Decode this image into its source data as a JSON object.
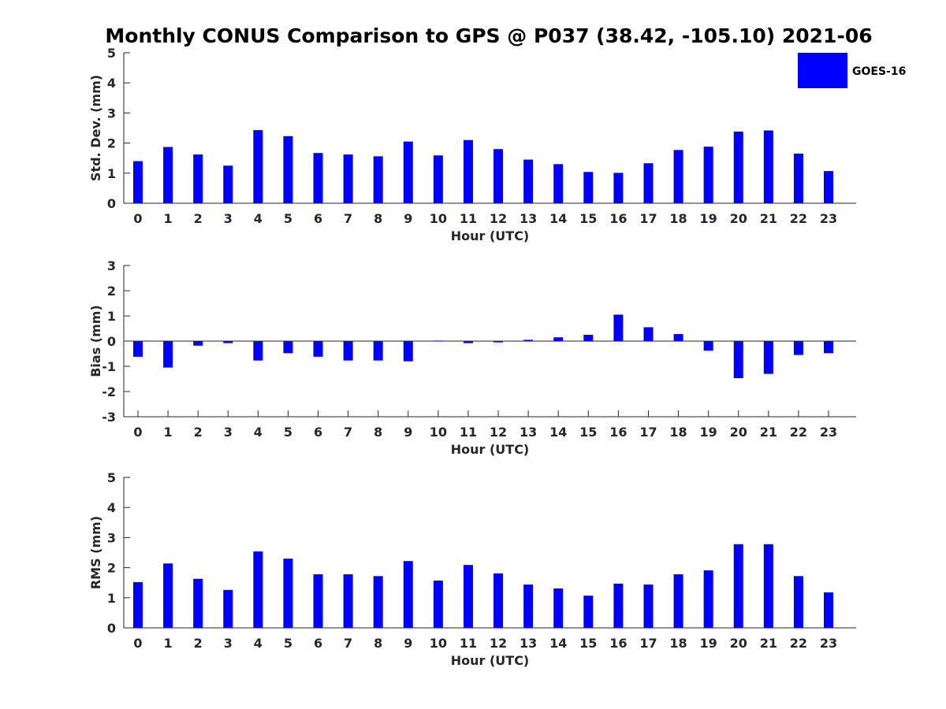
{
  "title": "Monthly CONUS Comparison to GPS @ P037 (38.42, -105.10) 2021-06",
  "legend": {
    "label": "GOES-16",
    "color": "#0000ff",
    "placement": "top-right"
  },
  "chart_data": [
    {
      "type": "bar",
      "series_name": "GOES-16",
      "xlabel": "Hour (UTC)",
      "ylabel": "Std. Dev. (mm)",
      "ylim": [
        0,
        5
      ],
      "yticks": [
        0,
        1,
        2,
        3,
        4,
        5
      ],
      "categories": [
        0,
        1,
        2,
        3,
        4,
        5,
        6,
        7,
        8,
        9,
        10,
        11,
        12,
        13,
        14,
        15,
        16,
        17,
        18,
        19,
        20,
        21,
        22,
        23
      ],
      "values": [
        1.4,
        1.87,
        1.62,
        1.25,
        2.43,
        2.23,
        1.67,
        1.62,
        1.56,
        2.05,
        1.59,
        2.1,
        1.8,
        1.45,
        1.3,
        1.04,
        1.01,
        1.33,
        1.77,
        1.88,
        2.38,
        2.42,
        1.65,
        1.07
      ],
      "color": "#0000ff",
      "grid": false,
      "legend": "top-right"
    },
    {
      "type": "bar",
      "series_name": "GOES-16",
      "xlabel": "Hour (UTC)",
      "ylabel": "Bias (mm)",
      "ylim": [
        -3,
        3
      ],
      "yticks": [
        -3,
        -2,
        -1,
        0,
        1,
        2,
        3
      ],
      "categories": [
        0,
        1,
        2,
        3,
        4,
        5,
        6,
        7,
        8,
        9,
        10,
        11,
        12,
        13,
        14,
        15,
        16,
        17,
        18,
        19,
        20,
        21,
        22,
        23
      ],
      "values": [
        -0.62,
        -1.05,
        -0.18,
        -0.08,
        -0.77,
        -0.48,
        -0.62,
        -0.77,
        -0.77,
        -0.8,
        0.02,
        -0.08,
        -0.05,
        0.05,
        0.15,
        0.25,
        1.05,
        0.55,
        0.28,
        -0.38,
        -1.47,
        -1.3,
        -0.55,
        -0.48
      ],
      "color": "#0000ff",
      "grid": false,
      "zero_line": true
    },
    {
      "type": "bar",
      "series_name": "GOES-16",
      "xlabel": "Hour (UTC)",
      "ylabel": "RMS (mm)",
      "ylim": [
        0,
        5
      ],
      "yticks": [
        0,
        1,
        2,
        3,
        4,
        5
      ],
      "categories": [
        0,
        1,
        2,
        3,
        4,
        5,
        6,
        7,
        8,
        9,
        10,
        11,
        12,
        13,
        14,
        15,
        16,
        17,
        18,
        19,
        20,
        21,
        22,
        23
      ],
      "values": [
        1.52,
        2.14,
        1.63,
        1.26,
        2.54,
        2.3,
        1.78,
        1.78,
        1.72,
        2.22,
        1.57,
        2.09,
        1.81,
        1.44,
        1.31,
        1.07,
        1.47,
        1.44,
        1.78,
        1.91,
        2.78,
        2.78,
        1.72,
        1.18
      ],
      "color": "#0000ff",
      "grid": false
    }
  ]
}
